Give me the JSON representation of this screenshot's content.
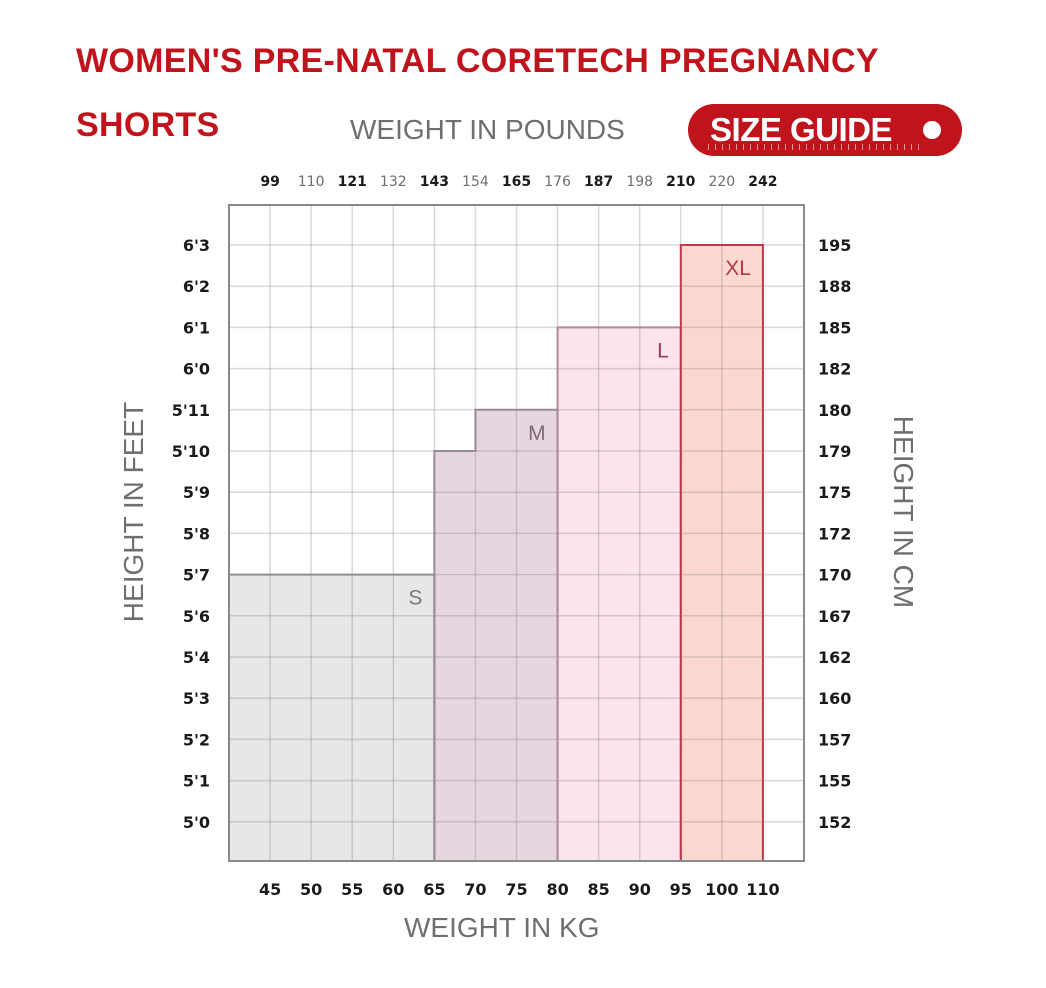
{
  "title": {
    "line1": "WOMEN'S PRE-NATAL CORETECH PREGNANCY",
    "line2": "SHORTS"
  },
  "badge": {
    "label": "SIZE GUIDE"
  },
  "colors": {
    "brand": "#c0141c",
    "axis_text": "#6f6f6f"
  },
  "chart_data": {
    "type": "bar",
    "title": "WOMEN'S PRE-NATAL CORETECH PREGNANCY SHORTS",
    "x_top_label": "WEIGHT IN POUNDS",
    "xlabel": "WEIGHT IN KG",
    "ylabel_left": "HEIGHT IN FEET",
    "ylabel_right": "HEIGHT IN CM",
    "x_pounds_ticks": [
      "99",
      "110",
      "121",
      "132",
      "143",
      "154",
      "165",
      "176",
      "187",
      "198",
      "210",
      "220",
      "242"
    ],
    "x_kg_ticks": [
      "45",
      "50",
      "55",
      "60",
      "65",
      "70",
      "75",
      "80",
      "85",
      "90",
      "95",
      "100",
      "110"
    ],
    "y_feet_ticks": [
      "6'3",
      "6'2",
      "6'1",
      "6'0",
      "5'11",
      "5'10",
      "5'9",
      "5'8",
      "5'7",
      "5'6",
      "5'4",
      "5'3",
      "5'2",
      "5'1",
      "5'0"
    ],
    "y_cm_ticks": [
      "195",
      "188",
      "185",
      "182",
      "180",
      "179",
      "175",
      "172",
      "170",
      "167",
      "162",
      "160",
      "157",
      "155",
      "152"
    ],
    "grid": true,
    "sizes": [
      {
        "name": "S",
        "kg_from": 40,
        "kg_to": 65,
        "max_height_ft": "5'7",
        "max_height_cm": 170,
        "color": "#e7e7e7",
        "border": "#8e8e8e",
        "label_color": "#7a7a7a"
      },
      {
        "name": "M",
        "kg_from": 65,
        "kg_to": 80,
        "max_height_ft": "5'11",
        "max_height_cm": 180,
        "step": {
          "kg_to": 70,
          "max_height_ft": "5'10",
          "max_height_cm": 179
        },
        "color": "#e6d6e0",
        "border": "#9a8a94",
        "label_color": "#7f6a78"
      },
      {
        "name": "L",
        "kg_from": 80,
        "kg_to": 95,
        "max_height_ft": "6'1",
        "max_height_cm": 185,
        "color": "#fbe4ec",
        "border": "#b08a98",
        "label_color": "#a0365a"
      },
      {
        "name": "XL",
        "kg_from": 95,
        "kg_to": 110,
        "max_height_ft": "6'3",
        "max_height_cm": 195,
        "color": "#fad8cf",
        "border": "#c0384a",
        "label_color": "#b0384a"
      }
    ]
  }
}
